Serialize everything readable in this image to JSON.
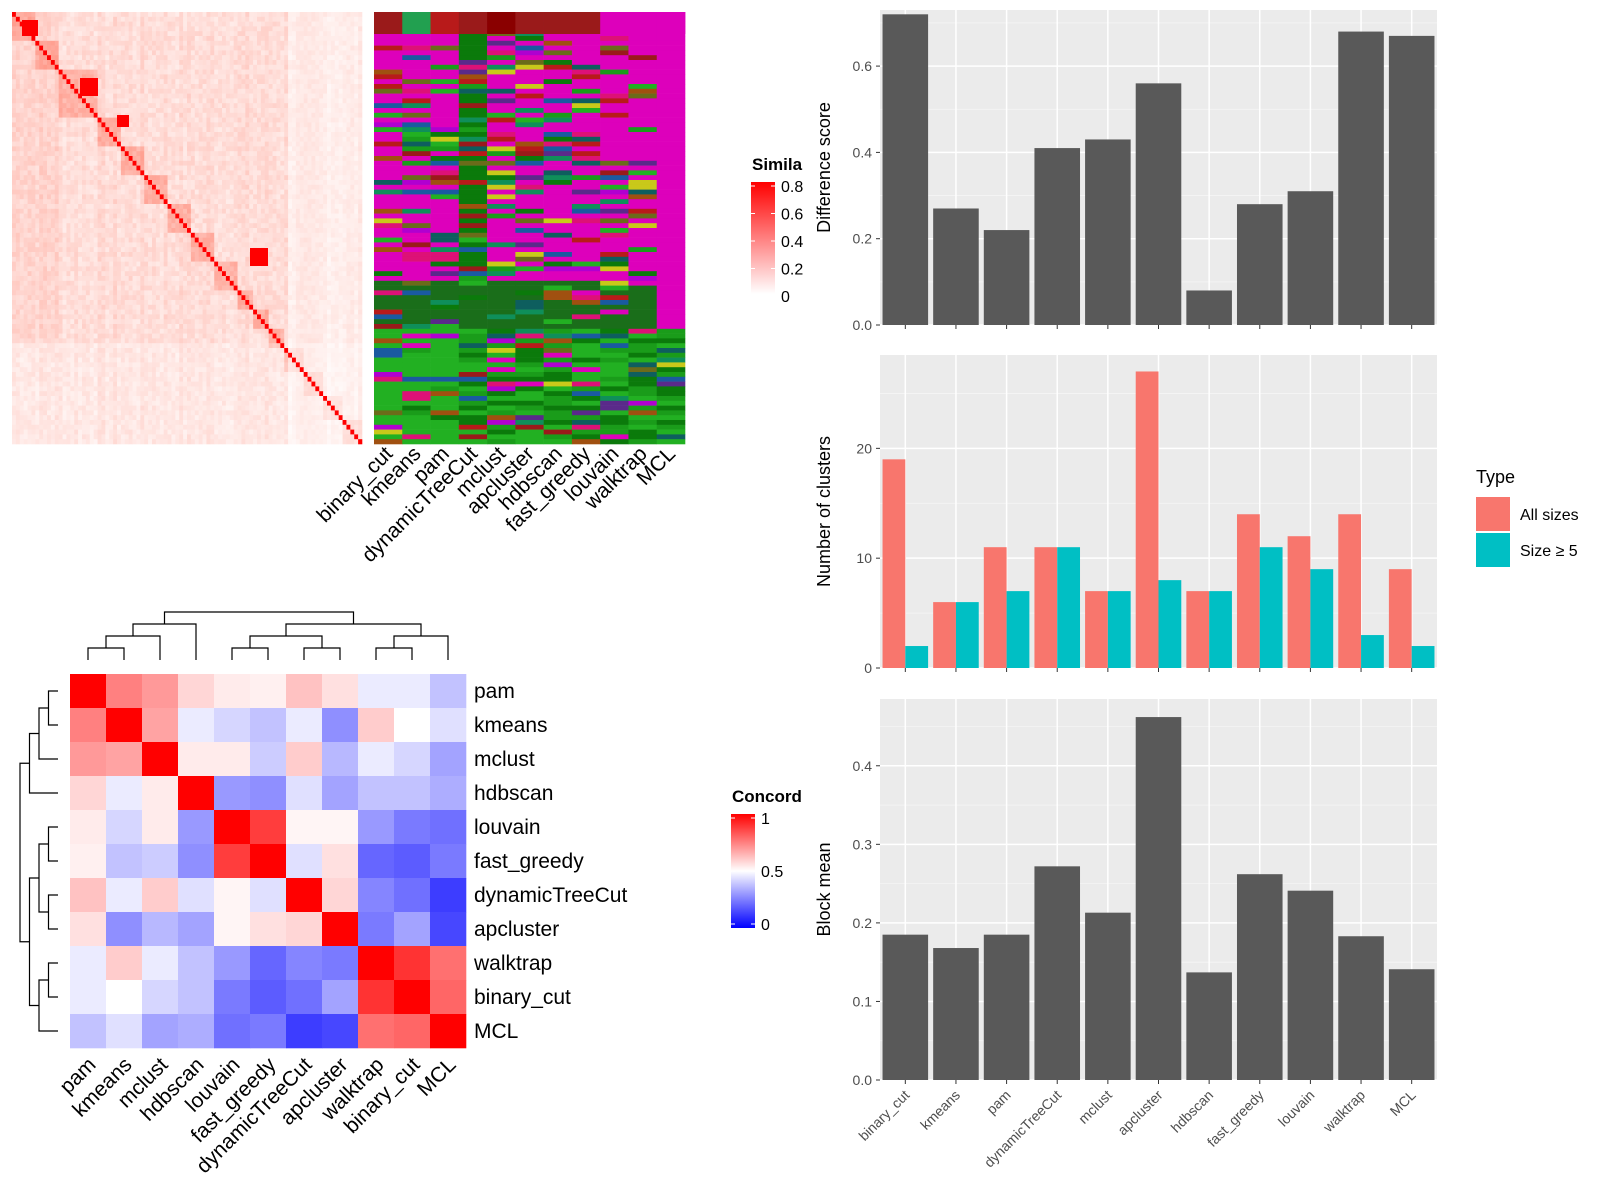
{
  "chart_data": [
    {
      "type": "heatmap",
      "id": "similarity-heatmap",
      "legend_title": "Simila",
      "legend_ticks": [
        "0.8",
        "0.6",
        "0.4",
        "0.2",
        "0"
      ],
      "annotation_columns": [
        "binary_cut",
        "kmeans",
        "pam",
        "dynamicTreeCut",
        "mclust",
        "apcluster",
        "hdbscan",
        "fast_greedy",
        "louvain",
        "walktrap",
        "MCL"
      ]
    },
    {
      "type": "heatmap",
      "id": "concordance-heatmap",
      "legend_title": "Concord",
      "legend_ticks": [
        "1",
        "0.5",
        "0"
      ],
      "labels": [
        "pam",
        "kmeans",
        "mclust",
        "hdbscan",
        "louvain",
        "fast_greedy",
        "dynamicTreeCut",
        "apcluster",
        "walktrap",
        "binary_cut",
        "MCL"
      ],
      "values": [
        [
          1.0,
          0.75,
          0.7,
          0.58,
          0.54,
          0.53,
          0.62,
          0.56,
          0.46,
          0.46,
          0.38
        ],
        [
          0.75,
          1.0,
          0.68,
          0.46,
          0.42,
          0.38,
          0.46,
          0.28,
          0.6,
          0.5,
          0.44
        ],
        [
          0.7,
          0.68,
          1.0,
          0.54,
          0.54,
          0.4,
          0.6,
          0.36,
          0.46,
          0.42,
          0.32
        ],
        [
          0.58,
          0.46,
          0.54,
          1.0,
          0.3,
          0.28,
          0.44,
          0.32,
          0.38,
          0.38,
          0.34
        ],
        [
          0.54,
          0.42,
          0.54,
          0.3,
          1.0,
          0.88,
          0.52,
          0.52,
          0.3,
          0.24,
          0.22
        ],
        [
          0.53,
          0.38,
          0.4,
          0.28,
          0.88,
          1.0,
          0.44,
          0.56,
          0.2,
          0.18,
          0.24
        ],
        [
          0.62,
          0.46,
          0.6,
          0.44,
          0.52,
          0.44,
          1.0,
          0.58,
          0.26,
          0.22,
          0.12
        ],
        [
          0.56,
          0.28,
          0.36,
          0.32,
          0.52,
          0.56,
          0.58,
          1.0,
          0.24,
          0.32,
          0.14
        ],
        [
          0.46,
          0.6,
          0.46,
          0.38,
          0.3,
          0.2,
          0.26,
          0.24,
          1.0,
          0.9,
          0.78
        ],
        [
          0.46,
          0.5,
          0.42,
          0.38,
          0.24,
          0.18,
          0.22,
          0.32,
          0.9,
          1.0,
          0.8
        ],
        [
          0.38,
          0.44,
          0.32,
          0.34,
          0.22,
          0.24,
          0.12,
          0.14,
          0.78,
          0.8,
          1.0
        ]
      ]
    },
    {
      "type": "bar",
      "id": "difference-score",
      "categories": [
        "binary_cut",
        "kmeans",
        "pam",
        "dynamicTreeCut",
        "mclust",
        "apcluster",
        "hdbscan",
        "fast_greedy",
        "louvain",
        "walktrap",
        "MCL"
      ],
      "values": [
        0.72,
        0.27,
        0.22,
        0.41,
        0.43,
        0.56,
        0.08,
        0.28,
        0.31,
        0.68,
        0.67
      ],
      "xlabel": "",
      "ylabel": "Difference score",
      "ylim": [
        0,
        0.73
      ],
      "yticks": [
        "0.0",
        "0.2",
        "0.4",
        "0.6"
      ],
      "grid": true
    },
    {
      "type": "bar",
      "id": "number-of-clusters",
      "categories": [
        "binary_cut",
        "kmeans",
        "pam",
        "dynamicTreeCut",
        "mclust",
        "apcluster",
        "hdbscan",
        "fast_greedy",
        "louvain",
        "walktrap",
        "MCL"
      ],
      "series": [
        {
          "name": "All sizes",
          "values": [
            19,
            6,
            11,
            11,
            7,
            27,
            7,
            14,
            12,
            14,
            9
          ]
        },
        {
          "name": "Size ≥ 5",
          "values": [
            2,
            6,
            7,
            11,
            7,
            8,
            7,
            11,
            9,
            3,
            2
          ]
        }
      ],
      "xlabel": "",
      "ylabel": "Number of clusters",
      "ylim": [
        0,
        28.5
      ],
      "yticks": [
        "0",
        "10",
        "20"
      ],
      "legend_title": "Type",
      "legend_position": "right",
      "grid": true
    },
    {
      "type": "bar",
      "id": "block-mean",
      "categories": [
        "binary_cut",
        "kmeans",
        "pam",
        "dynamicTreeCut",
        "mclust",
        "apcluster",
        "hdbscan",
        "fast_greedy",
        "louvain",
        "walktrap",
        "MCL"
      ],
      "values": [
        0.185,
        0.168,
        0.185,
        0.272,
        0.213,
        0.462,
        0.137,
        0.262,
        0.241,
        0.183,
        0.141
      ],
      "xlabel": "",
      "ylabel": "Block mean",
      "ylim": [
        0,
        0.485
      ],
      "yticks": [
        "0.0",
        "0.1",
        "0.2",
        "0.3",
        "0.4"
      ],
      "grid": true
    }
  ],
  "colors": {
    "panel_bg": "#ebebeb",
    "grid": "#ffffff",
    "bar_gray": "#595959",
    "all_sizes": "#F8766D",
    "size_ge_5": "#00BFC4",
    "diag_red": "#ff0000",
    "magenta": "#dd00bb"
  }
}
